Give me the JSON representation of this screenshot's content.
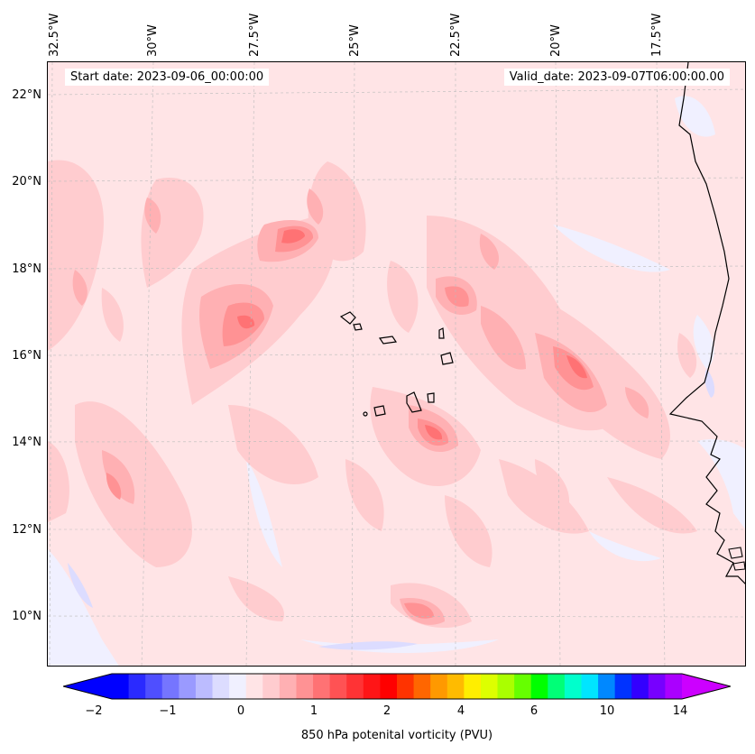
{
  "map": {
    "start_date": "Start date: 2023-09-06_00:00:00",
    "valid_date": "Valid_date: 2023-09-07T06:00:00.00",
    "lon_labels": [
      "32.5°W",
      "30°W",
      "27.5°W",
      "25°W",
      "22.5°W",
      "20°W",
      "17.5°W"
    ],
    "lat_labels": [
      "22°N",
      "20°N",
      "18°N",
      "16°N",
      "14°N",
      "12°N",
      "10°N"
    ],
    "projection_extent": {
      "lon_min": -32.7,
      "lon_max": -15.3,
      "lat_min": 8.9,
      "lat_max": 22.8
    },
    "coastline_color": "#000000",
    "gridline_color": "#bbbbbb"
  },
  "colorbar": {
    "label": "850 hPa potenital vorticity (PVU)",
    "tick_labels": [
      "−2",
      "−1",
      "0",
      "1",
      "2",
      "4",
      "6",
      "10",
      "14"
    ],
    "extend": "both",
    "colors": [
      "#0000ff",
      "#2a2aff",
      "#4f4fff",
      "#7575ff",
      "#9a9aff",
      "#bcbcff",
      "#dcdcff",
      "#f0f0ff",
      "#ffe4e6",
      "#ffcccf",
      "#ffb0b3",
      "#ff9294",
      "#ff7274",
      "#ff5254",
      "#ff3335",
      "#ff1517",
      "#ff0000",
      "#ff3300",
      "#ff6600",
      "#ff9900",
      "#ffbb00",
      "#ffee00",
      "#ddff00",
      "#aaff00",
      "#66ff00",
      "#00ff00",
      "#00ff77",
      "#00ffcc",
      "#00e5ff",
      "#0088ff",
      "#0033ff",
      "#3300ff",
      "#7700ff",
      "#aa00ff"
    ],
    "under_color": "#0000ff",
    "over_color": "#cc00ff"
  }
}
